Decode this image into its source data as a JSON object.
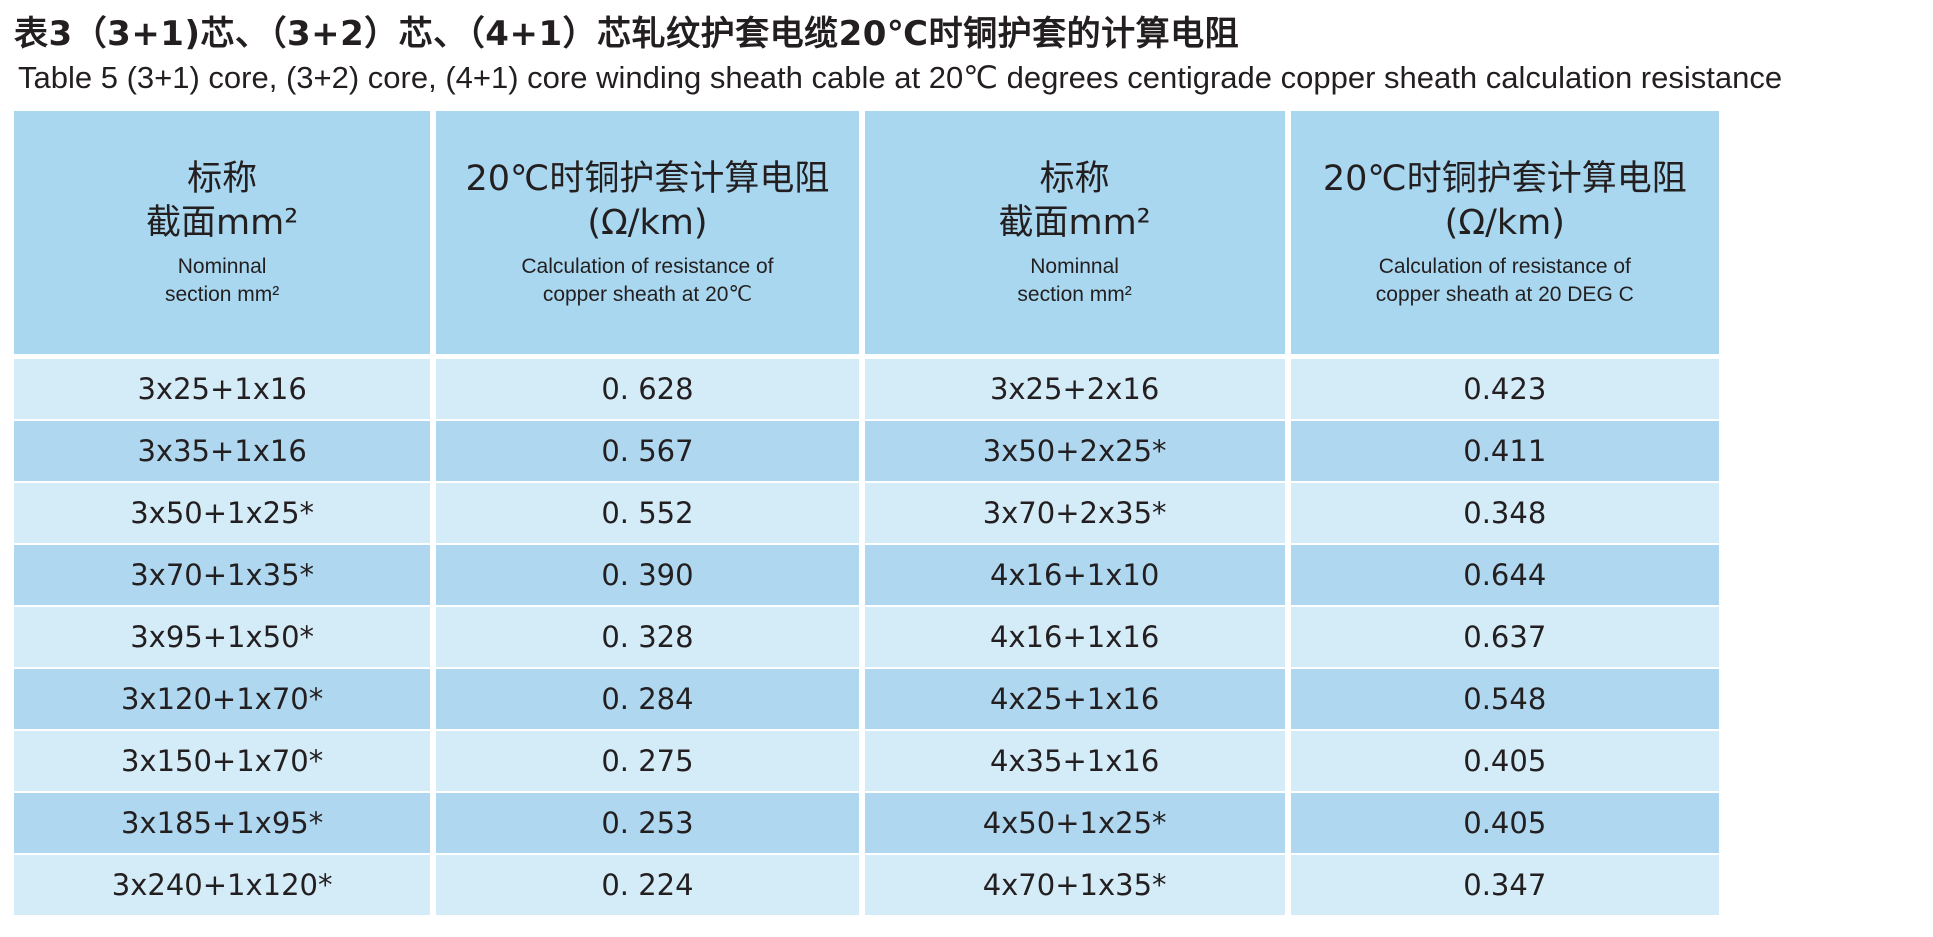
{
  "title_cn": "表3（3+1)芯、（3+2）芯、（4+1）芯轧纹护套电缆20℃时铜护套的计算电阻",
  "title_en": "Table 5 (3+1) core, (3+2) core, (4+1) core winding sheath cable at 20℃ degrees centigrade copper sheath calculation resistance",
  "headers": [
    {
      "cn": "标称\n截面mm²",
      "en": "Nominnal\nsection  mm²"
    },
    {
      "cn": "20℃时铜护套计算电阻\n(Ω/km)",
      "en": "Calculation of resistance of\ncopper sheath at 20℃"
    },
    {
      "cn": "标称\n截面mm²",
      "en": "Nominnal\nsection  mm²"
    },
    {
      "cn": "20℃时铜护套计算电阻\n(Ω/km)",
      "en": "Calculation of resistance of\ncopper sheath at 20 DEG C"
    }
  ],
  "rows": [
    [
      "3x25+1x16",
      "0. 628",
      "3x25+2x16",
      "0.423"
    ],
    [
      "3x35+1x16",
      "0. 567",
      "3x50+2x25*",
      "0.411"
    ],
    [
      "3x50+1x25*",
      "0. 552",
      "3x70+2x35*",
      "0.348"
    ],
    [
      "3x70+1x35*",
      "0. 390",
      "4x16+1x10",
      "0.644"
    ],
    [
      "3x95+1x50*",
      "0. 328",
      "4x16+1x16",
      "0.637"
    ],
    [
      "3x120+1x70*",
      "0. 284",
      "4x25+1x16",
      "0.548"
    ],
    [
      "3x150+1x70*",
      "0. 275",
      "4x35+1x16",
      "0.405"
    ],
    [
      "3x185+1x95*",
      "0. 253",
      "4x50+1x25*",
      "0.405"
    ],
    [
      "3x240+1x120*",
      "0. 224",
      "4x70+1x35*",
      "0.347"
    ]
  ],
  "colors": {
    "header_bg": "#a9d7ef",
    "row_light": "#d4ebf8",
    "row_dark": "#afd8f0",
    "text": "#231f20"
  }
}
